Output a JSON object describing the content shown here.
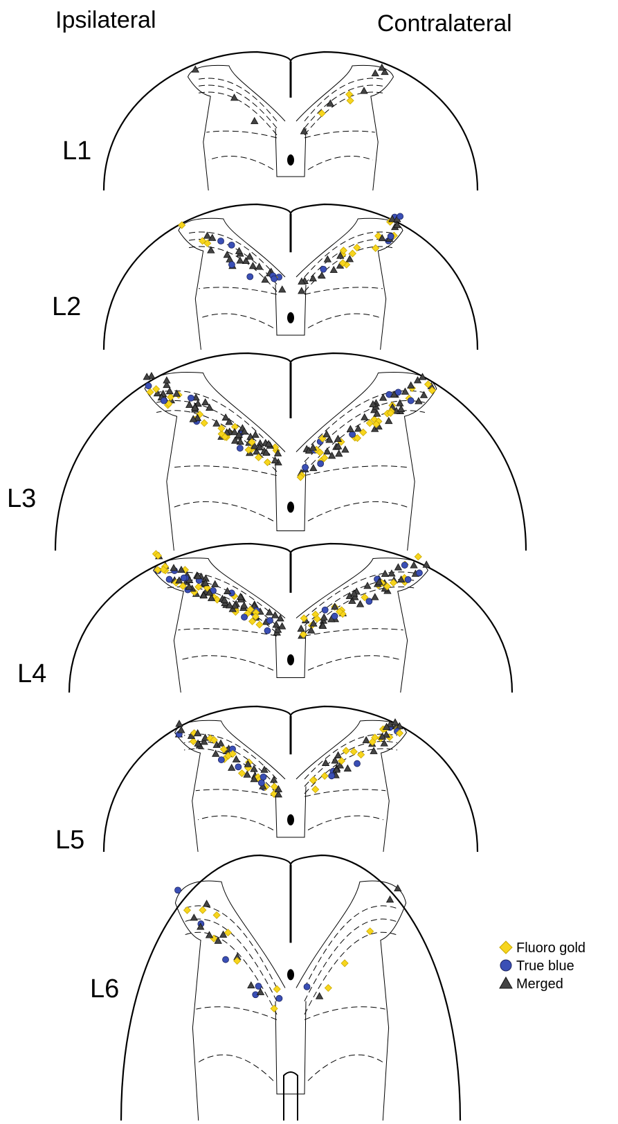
{
  "header": {
    "left": "Ipsilateral",
    "right": "Contralateral"
  },
  "sections": [
    {
      "label": "L1"
    },
    {
      "label": "L2"
    },
    {
      "label": "L3"
    },
    {
      "label": "L4"
    },
    {
      "label": "L5"
    },
    {
      "label": "L6"
    }
  ],
  "legend": [
    {
      "label": "Fluoro gold"
    },
    {
      "label": "True blue"
    },
    {
      "label": "Merged"
    }
  ]
}
